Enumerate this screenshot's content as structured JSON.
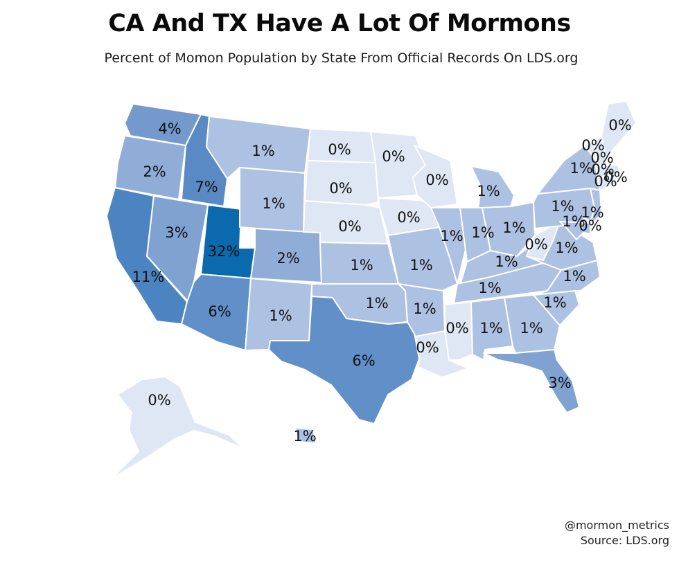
{
  "header": {
    "title": "CA And TX Have A Lot Of Mormons",
    "subtitle": "Percent of Momon Population by State From Official Records On LDS.org"
  },
  "credits": {
    "handle": "@mormon_metrics",
    "source": "Source: LDS.org"
  },
  "colors": {
    "background": "#ffffff",
    "border": "#ffffff",
    "scale": {
      "0": "#dfe7f4",
      "1": "#adc2e2",
      "2": "#8fadd7",
      "3": "#7fa2d1",
      "4": "#7399cd",
      "6": "#6090c7",
      "7": "#5a8ac4",
      "11": "#4b84c0",
      "32": "#0b69ad"
    }
  },
  "states": [
    {
      "name": "Washington",
      "abbr": "WA",
      "value": 4,
      "label": "4%"
    },
    {
      "name": "Oregon",
      "abbr": "OR",
      "value": 2,
      "label": "2%"
    },
    {
      "name": "California",
      "abbr": "CA",
      "value": 11,
      "label": "11%"
    },
    {
      "name": "Idaho",
      "abbr": "ID",
      "value": 7,
      "label": "7%"
    },
    {
      "name": "Nevada",
      "abbr": "NV",
      "value": 3,
      "label": "3%"
    },
    {
      "name": "Utah",
      "abbr": "UT",
      "value": 32,
      "label": "32%"
    },
    {
      "name": "Arizona",
      "abbr": "AZ",
      "value": 6,
      "label": "6%"
    },
    {
      "name": "Montana",
      "abbr": "MT",
      "value": 1,
      "label": "1%"
    },
    {
      "name": "Wyoming",
      "abbr": "WY",
      "value": 1,
      "label": "1%"
    },
    {
      "name": "Colorado",
      "abbr": "CO",
      "value": 2,
      "label": "2%"
    },
    {
      "name": "New Mexico",
      "abbr": "NM",
      "value": 1,
      "label": "1%"
    },
    {
      "name": "North Dakota",
      "abbr": "ND",
      "value": 0,
      "label": "0%"
    },
    {
      "name": "South Dakota",
      "abbr": "SD",
      "value": 0,
      "label": "0%"
    },
    {
      "name": "Nebraska",
      "abbr": "NE",
      "value": 0,
      "label": "0%"
    },
    {
      "name": "Kansas",
      "abbr": "KS",
      "value": 1,
      "label": "1%"
    },
    {
      "name": "Oklahoma",
      "abbr": "OK",
      "value": 1,
      "label": "1%"
    },
    {
      "name": "Texas",
      "abbr": "TX",
      "value": 6,
      "label": "6%"
    },
    {
      "name": "Minnesota",
      "abbr": "MN",
      "value": 0,
      "label": "0%"
    },
    {
      "name": "Iowa",
      "abbr": "IA",
      "value": 0,
      "label": "0%"
    },
    {
      "name": "Missouri",
      "abbr": "MO",
      "value": 1,
      "label": "1%"
    },
    {
      "name": "Arkansas",
      "abbr": "AR",
      "value": 1,
      "label": "1%"
    },
    {
      "name": "Louisiana",
      "abbr": "LA",
      "value": 0,
      "label": "0%"
    },
    {
      "name": "Wisconsin",
      "abbr": "WI",
      "value": 0,
      "label": "0%"
    },
    {
      "name": "Illinois",
      "abbr": "IL",
      "value": 1,
      "label": "1%"
    },
    {
      "name": "Michigan",
      "abbr": "MI",
      "value": 1,
      "label": "1%"
    },
    {
      "name": "Indiana",
      "abbr": "IN",
      "value": 1,
      "label": "1%"
    },
    {
      "name": "Ohio",
      "abbr": "OH",
      "value": 1,
      "label": "1%"
    },
    {
      "name": "Kentucky",
      "abbr": "KY",
      "value": 1,
      "label": "1%"
    },
    {
      "name": "Tennessee",
      "abbr": "TN",
      "value": 1,
      "label": "1%"
    },
    {
      "name": "Mississippi",
      "abbr": "MS",
      "value": 0,
      "label": "0%"
    },
    {
      "name": "Alabama",
      "abbr": "AL",
      "value": 1,
      "label": "1%"
    },
    {
      "name": "Georgia",
      "abbr": "GA",
      "value": 1,
      "label": "1%"
    },
    {
      "name": "Florida",
      "abbr": "FL",
      "value": 3,
      "label": "3%"
    },
    {
      "name": "South Carolina",
      "abbr": "SC",
      "value": 1,
      "label": "1%"
    },
    {
      "name": "North Carolina",
      "abbr": "NC",
      "value": 1,
      "label": "1%"
    },
    {
      "name": "Virginia",
      "abbr": "VA",
      "value": 1,
      "label": "1%"
    },
    {
      "name": "West Virginia",
      "abbr": "WV",
      "value": 0,
      "label": "0%"
    },
    {
      "name": "Pennsylvania",
      "abbr": "PA",
      "value": 1,
      "label": "1%"
    },
    {
      "name": "New York",
      "abbr": "NY",
      "value": 1,
      "label": "1%"
    },
    {
      "name": "New Jersey",
      "abbr": "NJ",
      "value": 1,
      "label": "1%"
    },
    {
      "name": "Delaware",
      "abbr": "DE",
      "value": 0,
      "label": "0%"
    },
    {
      "name": "Maryland",
      "abbr": "MD",
      "value": 1,
      "label": "1%"
    },
    {
      "name": "Vermont",
      "abbr": "VT",
      "value": 0,
      "label": "0%"
    },
    {
      "name": "New Hampshire",
      "abbr": "NH",
      "value": 0,
      "label": "0%"
    },
    {
      "name": "Maine",
      "abbr": "ME",
      "value": 0,
      "label": "0%"
    },
    {
      "name": "Massachusetts",
      "abbr": "MA",
      "value": 0,
      "label": "0%"
    },
    {
      "name": "Connecticut",
      "abbr": "CT",
      "value": 0,
      "label": "0%"
    },
    {
      "name": "Rhode Island",
      "abbr": "RI",
      "value": 0,
      "label": "0%"
    },
    {
      "name": "Alaska",
      "abbr": "AK",
      "value": 0,
      "label": "0%"
    },
    {
      "name": "Hawaii",
      "abbr": "HI",
      "value": 1,
      "label": "1%"
    }
  ]
}
